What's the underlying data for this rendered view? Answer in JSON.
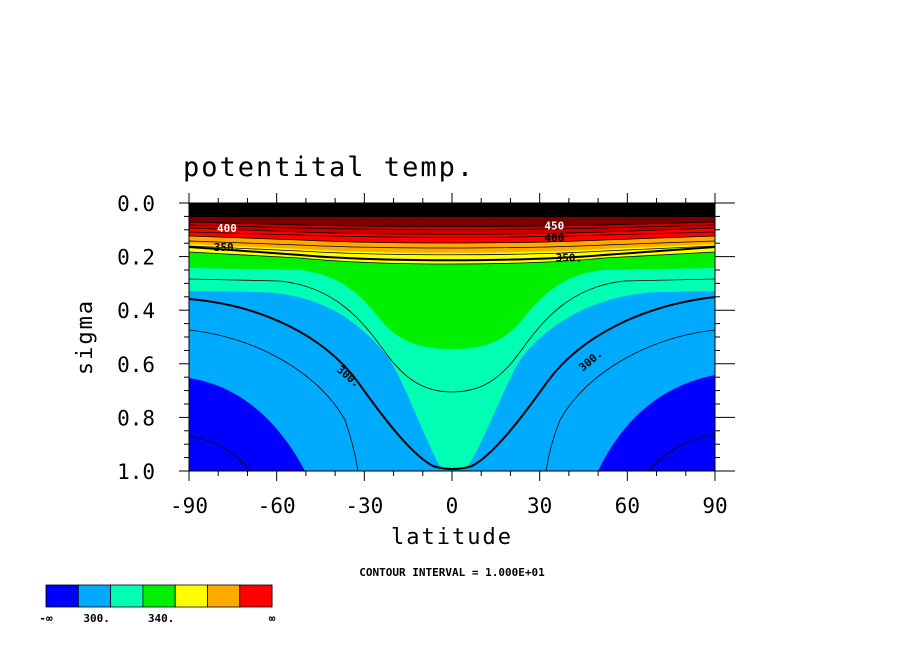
{
  "chart_data": {
    "type": "contour",
    "title": "potentital temp.",
    "xlabel": "latitude",
    "ylabel": "sigma",
    "xlim": [
      -90,
      90
    ],
    "ylim": [
      0.0,
      1.0
    ],
    "y_inverted": true,
    "x_ticks": [
      "-90",
      "-60",
      "-30",
      "0",
      "30",
      "60",
      "90"
    ],
    "x_tick_values": [
      -90,
      -60,
      -30,
      0,
      30,
      60,
      90
    ],
    "y_ticks": [
      "0.0",
      "0.2",
      "0.4",
      "0.6",
      "0.8",
      "1.0"
    ],
    "y_tick_values": [
      0.0,
      0.2,
      0.4,
      0.6,
      0.8,
      1.0
    ],
    "contour_interval_text": "CONTOUR INTERVAL = 1.000E+01",
    "contour_labels": [
      {
        "text": "300.",
        "lat": -36,
        "sigma": 0.655
      },
      {
        "text": "300.",
        "lat": 48,
        "sigma": 0.595
      },
      {
        "text": "350.",
        "lat": -77,
        "sigma": 0.175
      },
      {
        "text": "350.",
        "lat": 40,
        "sigma": 0.215
      },
      {
        "text": "400",
        "lat": -77,
        "sigma": 0.105
      },
      {
        "text": "400",
        "lat": 35,
        "sigma": 0.14
      },
      {
        "text": "450",
        "lat": 35,
        "sigma": 0.095
      }
    ],
    "colorbar": {
      "colors": [
        "#0000ff",
        "#00aaff",
        "#00ffb4",
        "#00f000",
        "#ffff00",
        "#ffaa00",
        "#ff0000"
      ],
      "labels": [
        "-∞",
        "300.",
        "340.",
        "∞"
      ]
    }
  }
}
